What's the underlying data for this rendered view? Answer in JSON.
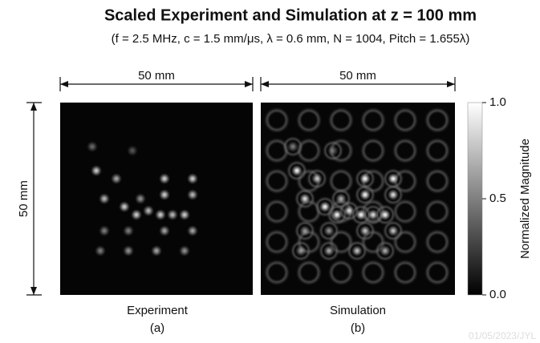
{
  "title": "Scaled Experiment and Simulation at z = 100 mm",
  "subtitle": "(f = 2.5 MHz, c = 1.5 mm/μs, λ = 0.6 mm, N = 1004, Pitch = 1.655λ)",
  "dimensions": {
    "left_width": "50 mm",
    "right_width": "50 mm",
    "height": "50 mm"
  },
  "panels": [
    {
      "name": "Experiment",
      "label": "(a)"
    },
    {
      "name": "Simulation",
      "label": "(b)"
    }
  ],
  "colorbar": {
    "label": "Normalized Magnitude",
    "clim": [
      0,
      1
    ],
    "ticks": [
      {
        "value": 0,
        "label": "0.0"
      },
      {
        "value": 0.5,
        "label": "0.5"
      },
      {
        "value": 1,
        "label": "1.0"
      }
    ]
  },
  "watermark": "01/05/2023/JYL"
}
